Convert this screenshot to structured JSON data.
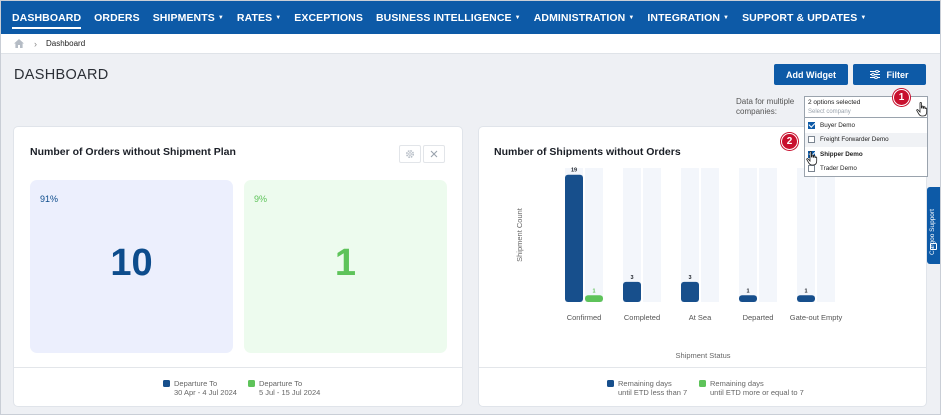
{
  "nav": {
    "items": [
      {
        "label": "DASHBOARD",
        "active": true,
        "caret": false
      },
      {
        "label": "ORDERS",
        "active": false,
        "caret": false
      },
      {
        "label": "SHIPMENTS",
        "active": false,
        "caret": true
      },
      {
        "label": "RATES",
        "active": false,
        "caret": true
      },
      {
        "label": "EXCEPTIONS",
        "active": false,
        "caret": false
      },
      {
        "label": "BUSINESS INTELLIGENCE",
        "active": false,
        "caret": true
      },
      {
        "label": "ADMINISTRATION",
        "active": false,
        "caret": true
      },
      {
        "label": "INTEGRATION",
        "active": false,
        "caret": true
      },
      {
        "label": "SUPPORT & UPDATES",
        "active": false,
        "caret": true
      }
    ],
    "bg_color": "#0d5aa7"
  },
  "breadcrumb": {
    "home_icon": "home-icon",
    "separator": "›",
    "current": "Dashboard"
  },
  "header": {
    "title": "DASHBOARD",
    "add_widget_label": "Add Widget",
    "filter_label": "Filter",
    "company_label": "Data for multiple companies:"
  },
  "company_select": {
    "selected_text": "2 options selected",
    "placeholder": "Select company",
    "options": [
      {
        "label": "Buyer Demo",
        "checked": true
      },
      {
        "label": "Freight Forwarder Demo",
        "checked": false
      },
      {
        "label": "Shipper Demo",
        "checked": true
      },
      {
        "label": "Trader Demo",
        "checked": false
      }
    ]
  },
  "markers": {
    "step1": "1",
    "step2": "2"
  },
  "widget_orders": {
    "title": "Number of Orders without Shipment Plan",
    "kpis": [
      {
        "percent": "91%",
        "value": "10",
        "color": "#0d4c8c",
        "bg": "#eceffd"
      },
      {
        "percent": "9%",
        "value": "1",
        "color": "#5ec35a",
        "bg": "#edfbee"
      }
    ],
    "legend": [
      {
        "label": "Departure To",
        "sub": "30 Apr - 4 Jul 2024",
        "color": "#174f8c"
      },
      {
        "label": "Departure To",
        "sub": "5 Jul - 15 Jul 2024",
        "color": "#5ec35a"
      }
    ]
  },
  "widget_shipments": {
    "title": "Number of Shipments without Orders",
    "legend": [
      {
        "label": "Remaining days",
        "sub": "until ETD less than 7",
        "color": "#174f8c"
      },
      {
        "label": "Remaining days",
        "sub": "until ETD more or equal to 7",
        "color": "#5ec35a"
      }
    ]
  },
  "chart_data": {
    "type": "bar",
    "categories": [
      "Confirmed",
      "Completed",
      "At Sea",
      "Departed",
      "Gate-out Empty"
    ],
    "series": [
      {
        "name": "Remaining days until ETD less than 7",
        "values": [
          19,
          3,
          3,
          1,
          1
        ],
        "color": "#174f8c"
      },
      {
        "name": "Remaining days until ETD more or equal to 7",
        "values": [
          1,
          null,
          null,
          null,
          null
        ],
        "color": "#5ec35a"
      }
    ],
    "xlabel": "Shipment Status",
    "ylabel": "Shipment Count",
    "ylim": [
      0,
      20
    ],
    "grid": false,
    "legend": "bottom"
  },
  "side_tab": {
    "label": "Cargoo Support"
  }
}
